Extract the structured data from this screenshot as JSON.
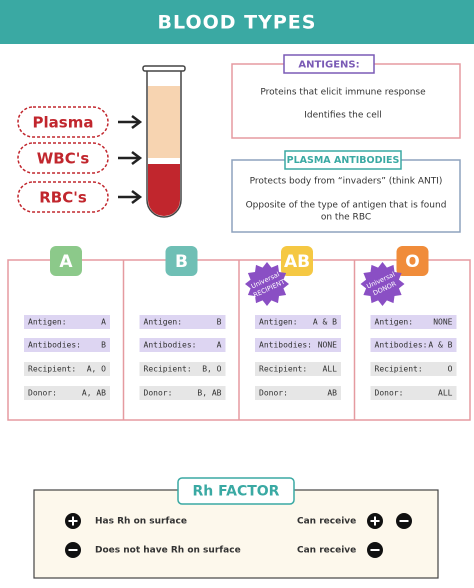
{
  "header": {
    "title": "BLOOD TYPES"
  },
  "components": [
    "Plasma",
    "WBC's",
    "RBC's"
  ],
  "antigens": {
    "title": "ANTIGENS:",
    "lines": [
      "Proteins that elicit immune response",
      "Identifies the cell"
    ]
  },
  "plasma_antibodies": {
    "title": "PLASMA ANTIBODIES",
    "lines": [
      "Protects body from “invaders” (think ANTI)",
      "Opposite of the type of antigen that is found",
      "on the RBC"
    ]
  },
  "blood_types": [
    {
      "label": "A",
      "rows": [
        [
          "Antigen:",
          "A"
        ],
        [
          "Antibodies:",
          "B"
        ],
        [
          "Recipient:",
          "A, O"
        ],
        [
          "Donor:",
          "A, AB"
        ]
      ]
    },
    {
      "label": "B",
      "rows": [
        [
          "Antigen:",
          "B"
        ],
        [
          "Antibodies:",
          "A"
        ],
        [
          "Recipient:",
          "B, O"
        ],
        [
          "Donor:",
          "B, AB"
        ]
      ]
    },
    {
      "label": "AB",
      "badge": [
        "Universal",
        "RECIPIENT"
      ],
      "rows": [
        [
          "Antigen:",
          "A & B"
        ],
        [
          "Antibodies:",
          "NONE"
        ],
        [
          "Recipient:",
          "ALL"
        ],
        [
          "Donor:",
          "AB"
        ]
      ]
    },
    {
      "label": "O",
      "badge": [
        "Universal",
        "DONOR"
      ],
      "rows": [
        [
          "Antigen:",
          "NONE"
        ],
        [
          "Antibodies:",
          "A & B"
        ],
        [
          "Recipient:",
          "O"
        ],
        [
          "Donor:",
          "ALL"
        ]
      ]
    }
  ],
  "rh_factor": {
    "title": "Rh FACTOR",
    "rows": [
      {
        "description": "Has Rh on surface",
        "action": "Can receive"
      },
      {
        "description": "Does not have Rh on surface",
        "action": "Can receive"
      }
    ]
  }
}
